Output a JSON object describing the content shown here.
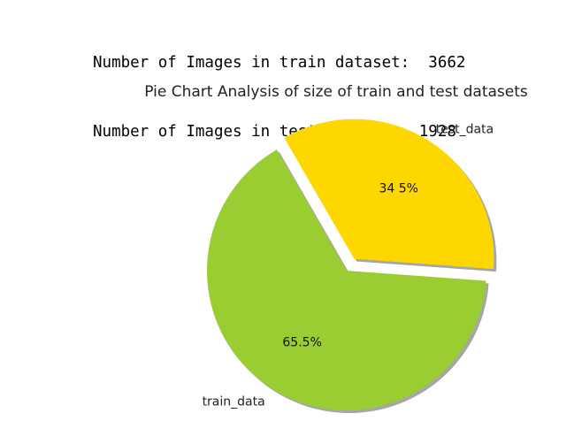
{
  "output": {
    "lines": [
      "Number of Images in train dataset:  3662",
      "Number of Images in test dataset:  1928"
    ]
  },
  "chart_data": {
    "type": "pie",
    "title": "Pie Chart Analysis of size of train and test datasets",
    "labels": [
      "train_data",
      "test_data"
    ],
    "values": [
      3662,
      1928
    ],
    "percent_labels": [
      "65.5%",
      "34 5%"
    ],
    "colors": [
      "#9ACD32",
      "#FFD700"
    ],
    "explode": [
      0,
      0.1
    ],
    "start_angle": 120,
    "shadow": true
  }
}
